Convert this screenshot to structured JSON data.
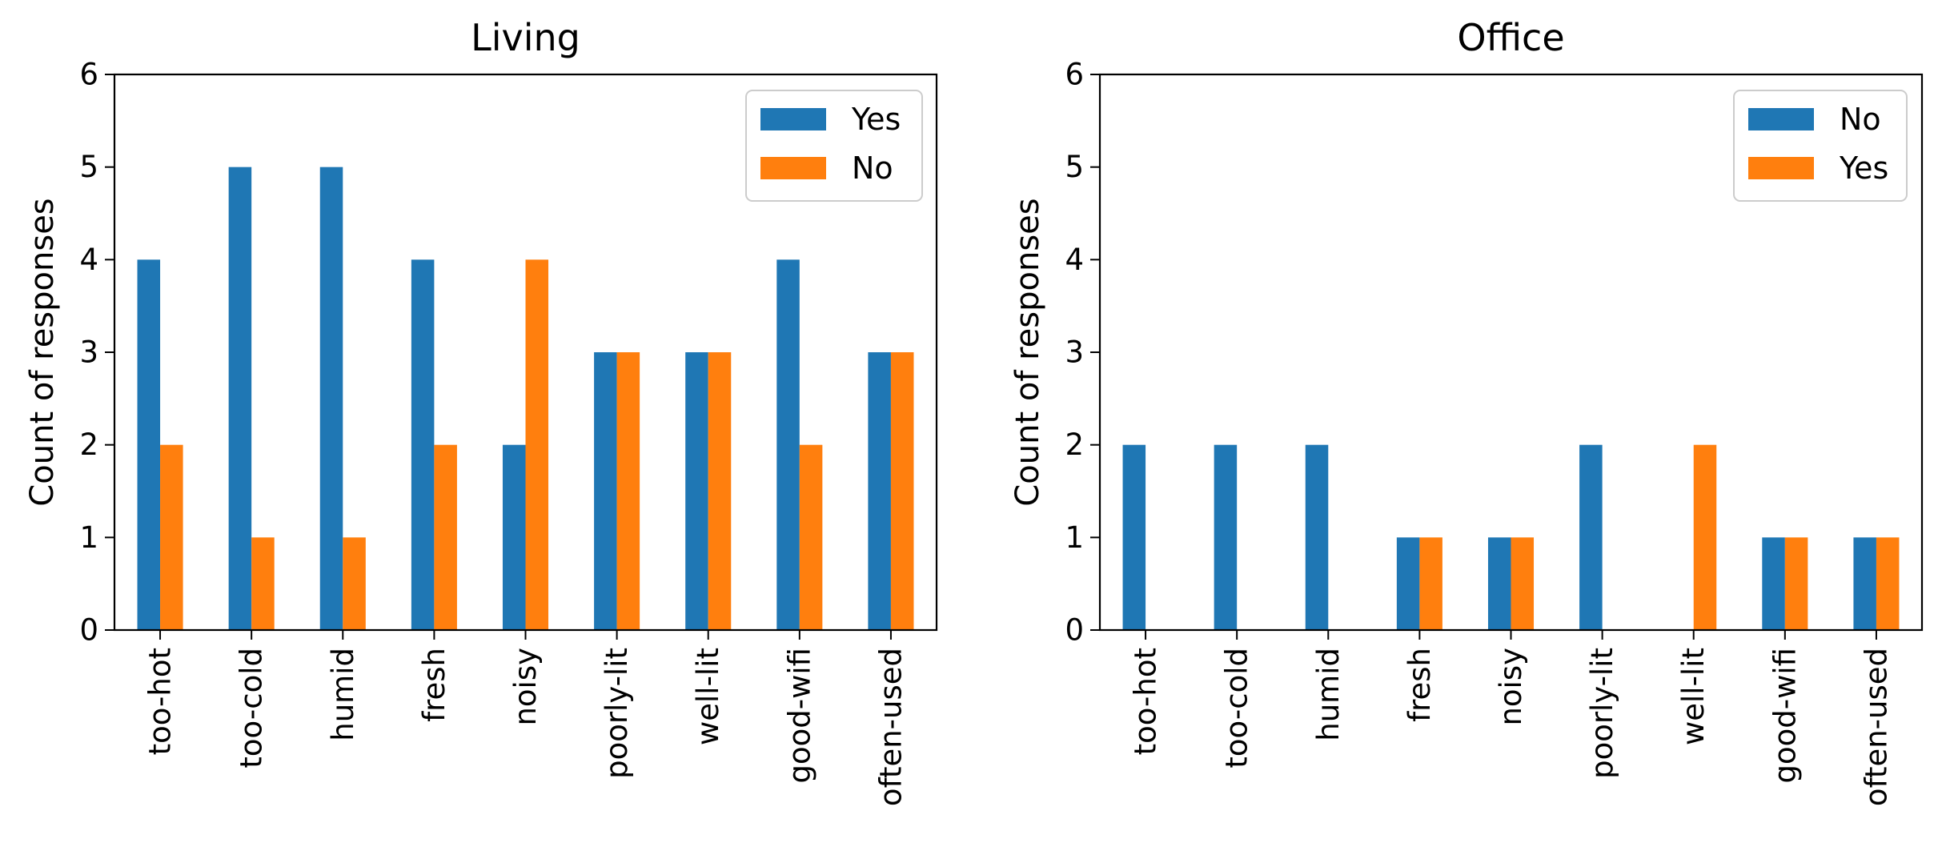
{
  "chart_data": [
    {
      "type": "bar",
      "title": "Living",
      "xlabel": "",
      "ylabel": "Count of responses",
      "ylim": [
        0,
        6
      ],
      "yticks": [
        "0",
        "1",
        "2",
        "3",
        "4",
        "5",
        "6"
      ],
      "categories": [
        "too-hot",
        "too-cold",
        "humid",
        "fresh",
        "noisy",
        "poorly-lit",
        "well-lit",
        "good-wifi",
        "often-used"
      ],
      "series": [
        {
          "name": "Yes",
          "color": "#1f77b4",
          "values": [
            4,
            5,
            5,
            4,
            2,
            3,
            3,
            4,
            3
          ]
        },
        {
          "name": "No",
          "color": "#ff7f0e",
          "values": [
            2,
            1,
            1,
            2,
            4,
            3,
            3,
            2,
            3
          ]
        }
      ],
      "legend": "top-right",
      "grid": false
    },
    {
      "type": "bar",
      "title": "Office",
      "xlabel": "",
      "ylabel": "Count of responses",
      "ylim": [
        0,
        6
      ],
      "yticks": [
        "0",
        "1",
        "2",
        "3",
        "4",
        "5",
        "6"
      ],
      "categories": [
        "too-hot",
        "too-cold",
        "humid",
        "fresh",
        "noisy",
        "poorly-lit",
        "well-lit",
        "good-wifi",
        "often-used"
      ],
      "series": [
        {
          "name": "No",
          "color": "#1f77b4",
          "values": [
            2,
            2,
            2,
            1,
            1,
            2,
            0,
            1,
            1
          ]
        },
        {
          "name": "Yes",
          "color": "#ff7f0e",
          "values": [
            0,
            0,
            0,
            1,
            1,
            0,
            2,
            1,
            1
          ]
        }
      ],
      "legend": "top-right",
      "grid": false
    }
  ]
}
